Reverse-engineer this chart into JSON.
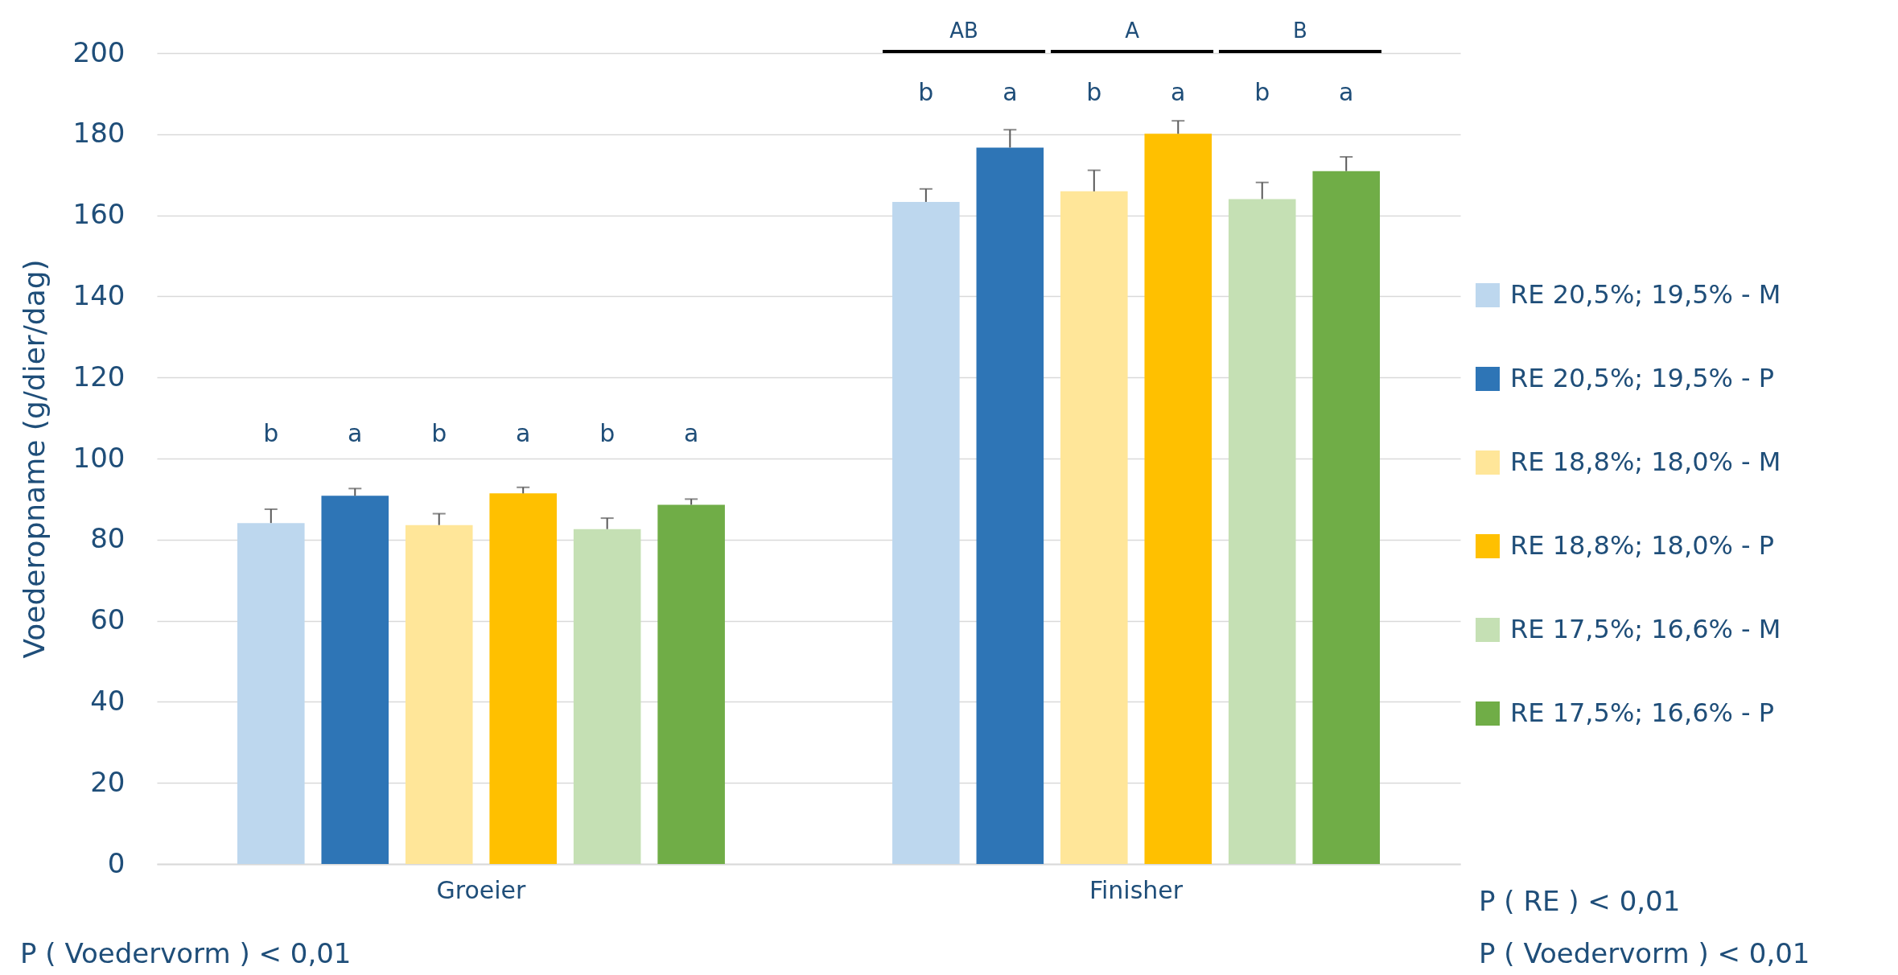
{
  "chart_data": {
    "type": "bar",
    "ylabel": "Voederopname (g/dier/dag)",
    "categories": [
      "Groeier",
      "Finisher"
    ],
    "series": [
      {
        "name": "RE 20,5%; 19,5% - M",
        "color": "#bdd7ee",
        "values": [
          84.1,
          163.3
        ],
        "errors": [
          3.4,
          3.2
        ]
      },
      {
        "name": "RE 20,5%; 19,5% - P",
        "color": "#2e75b6",
        "values": [
          90.8,
          176.7
        ],
        "errors": [
          1.8,
          4.4
        ]
      },
      {
        "name": "RE 18,8%; 18,0% - M",
        "color": "#ffe699",
        "values": [
          83.6,
          165.9
        ],
        "errors": [
          2.8,
          5.2
        ]
      },
      {
        "name": "RE 18,8%; 18,0% - P",
        "color": "#ffc000",
        "values": [
          91.4,
          180.1
        ],
        "errors": [
          1.5,
          3.2
        ]
      },
      {
        "name": "RE 17,5%; 16,6% - M",
        "color": "#c5e0b4",
        "values": [
          82.6,
          164.0
        ],
        "errors": [
          2.7,
          4.1
        ]
      },
      {
        "name": "RE 17,5%; 16,6% - P",
        "color": "#70ad47",
        "values": [
          88.6,
          170.9
        ],
        "errors": [
          1.4,
          3.5
        ]
      }
    ],
    "ylim": [
      0,
      200
    ],
    "yticks": [
      0,
      20,
      40,
      60,
      80,
      100,
      120,
      140,
      160,
      180,
      200
    ],
    "grid": "y",
    "legend": "right",
    "annotations": [
      "b",
      "a",
      "b",
      "a",
      "b",
      "a",
      "b",
      "a",
      "b",
      "a",
      "b",
      "a",
      "AB",
      "A",
      "B",
      "P ( Voedervorm ) < 0,01",
      "P ( RE ) < 0,01",
      "P ( Voedervorm ) < 0,01"
    ]
  }
}
